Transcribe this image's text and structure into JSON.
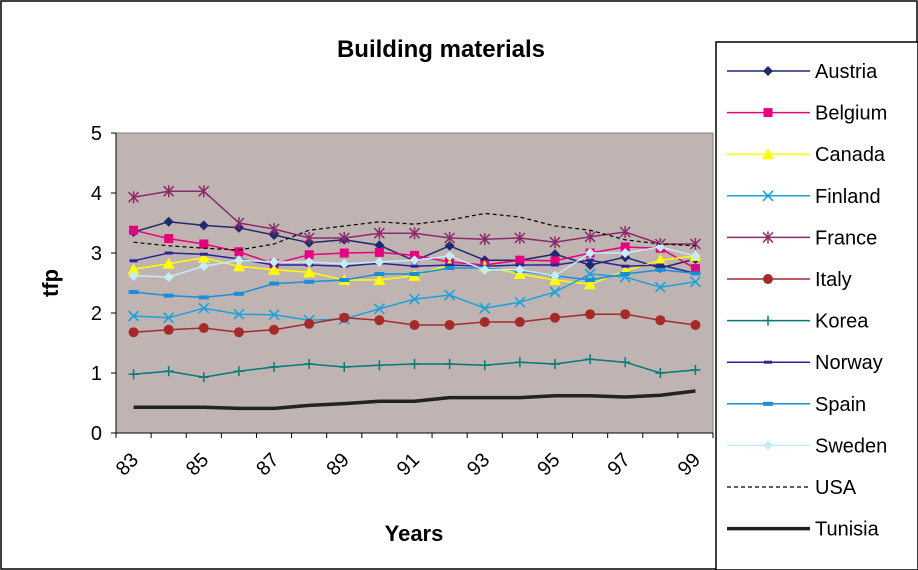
{
  "chart_data": {
    "type": "line",
    "title": "Building materials",
    "xlabel": "Years",
    "ylabel": "tfp",
    "ylim": [
      0,
      5
    ],
    "yticks": [
      "0",
      "1",
      "2",
      "3",
      "4",
      "5"
    ],
    "xticks": [
      "83",
      "85",
      "87",
      "89",
      "91",
      "93",
      "95",
      "97",
      "99"
    ],
    "x": [
      83,
      84,
      85,
      86,
      87,
      88,
      89,
      90,
      91,
      92,
      93,
      94,
      95,
      96,
      97,
      98,
      99
    ],
    "legend_position": "right",
    "grid": false,
    "plot_background": "#c0b4b2",
    "series": [
      {
        "name": "Austria",
        "color": "#1f2a6e",
        "marker": "diamond",
        "dash": "solid",
        "width": 1.5,
        "values": [
          3.35,
          3.52,
          3.46,
          3.42,
          3.3,
          3.17,
          3.22,
          3.13,
          2.87,
          3.12,
          2.88,
          2.88,
          2.98,
          2.8,
          2.93,
          2.75,
          2.9
        ]
      },
      {
        "name": "Belgium",
        "color": "#e6007e",
        "marker": "square",
        "dash": "solid",
        "width": 1.5,
        "values": [
          3.38,
          3.24,
          3.15,
          3.02,
          2.82,
          2.97,
          3.0,
          3.01,
          2.96,
          2.85,
          2.8,
          2.88,
          2.87,
          3.0,
          3.1,
          3.08,
          2.74
        ]
      },
      {
        "name": "Canada",
        "color": "#ffff00",
        "marker": "triangle",
        "dash": "solid",
        "width": 1.5,
        "values": [
          2.73,
          2.82,
          2.92,
          2.78,
          2.72,
          2.68,
          2.55,
          2.55,
          2.62,
          2.8,
          2.78,
          2.65,
          2.55,
          2.48,
          2.7,
          2.88,
          2.95
        ]
      },
      {
        "name": "Finland",
        "color": "#1aa3d9",
        "marker": "x",
        "dash": "solid",
        "width": 1.5,
        "values": [
          1.95,
          1.92,
          2.08,
          1.98,
          1.97,
          1.88,
          1.9,
          2.07,
          2.23,
          2.3,
          2.08,
          2.18,
          2.35,
          2.65,
          2.6,
          2.43,
          2.52
        ]
      },
      {
        "name": "France",
        "color": "#8b2a6b",
        "marker": "star",
        "dash": "solid",
        "width": 1.5,
        "values": [
          3.93,
          4.03,
          4.03,
          3.5,
          3.4,
          3.25,
          3.25,
          3.33,
          3.33,
          3.25,
          3.23,
          3.25,
          3.18,
          3.27,
          3.35,
          3.15,
          3.15
        ]
      },
      {
        "name": "Italy",
        "color": "#a52a2a",
        "marker": "circle",
        "dash": "solid",
        "width": 1.5,
        "values": [
          1.68,
          1.72,
          1.75,
          1.68,
          1.72,
          1.82,
          1.92,
          1.88,
          1.8,
          1.8,
          1.85,
          1.85,
          1.92,
          1.98,
          1.98,
          1.88,
          1.8
        ]
      },
      {
        "name": "Korea",
        "color": "#007b7b",
        "marker": "plus",
        "dash": "solid",
        "width": 1.5,
        "values": [
          0.98,
          1.03,
          0.93,
          1.03,
          1.1,
          1.15,
          1.1,
          1.13,
          1.15,
          1.15,
          1.13,
          1.18,
          1.15,
          1.23,
          1.18,
          1.0,
          1.05
        ]
      },
      {
        "name": "Norway",
        "color": "#26269a",
        "marker": "dash",
        "dash": "solid",
        "width": 1.5,
        "values": [
          2.87,
          3.0,
          2.98,
          2.9,
          2.8,
          2.8,
          2.78,
          2.83,
          2.78,
          2.8,
          2.78,
          2.8,
          2.8,
          2.88,
          2.78,
          2.8,
          2.66
        ]
      },
      {
        "name": "Spain",
        "color": "#1a8fd6",
        "marker": "bar",
        "dash": "solid",
        "width": 1.5,
        "values": [
          2.35,
          2.29,
          2.26,
          2.32,
          2.49,
          2.52,
          2.55,
          2.65,
          2.65,
          2.75,
          2.75,
          2.7,
          2.62,
          2.55,
          2.65,
          2.72,
          2.66
        ]
      },
      {
        "name": "Sweden",
        "color": "#c6ecf8",
        "marker": "diamond",
        "dash": "solid",
        "width": 1.5,
        "values": [
          2.62,
          2.6,
          2.78,
          2.88,
          2.85,
          2.85,
          2.82,
          2.85,
          2.88,
          2.95,
          2.72,
          2.72,
          2.62,
          3.0,
          3.0,
          3.1,
          2.95
        ]
      },
      {
        "name": "USA",
        "color": "#000000",
        "marker": "none",
        "dash": "dashed",
        "width": 1.2,
        "values": [
          3.18,
          3.12,
          3.08,
          3.05,
          3.15,
          3.38,
          3.45,
          3.52,
          3.48,
          3.55,
          3.66,
          3.6,
          3.45,
          3.38,
          3.22,
          3.15,
          3.12
        ]
      },
      {
        "name": "Tunisia",
        "color": "#222222",
        "marker": "none",
        "dash": "solid",
        "width": 3.5,
        "values": [
          0.43,
          0.43,
          0.43,
          0.41,
          0.41,
          0.46,
          0.49,
          0.53,
          0.53,
          0.59,
          0.59,
          0.59,
          0.62,
          0.62,
          0.6,
          0.63,
          0.7
        ]
      }
    ]
  }
}
